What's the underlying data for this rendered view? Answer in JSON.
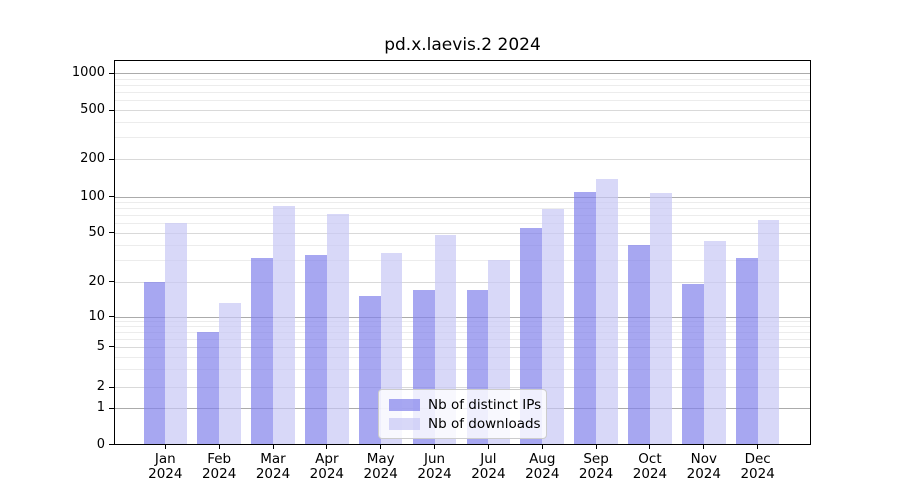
{
  "title": "pd.x.laevis.2 2024",
  "chart_data": {
    "type": "bar",
    "title": "pd.x.laevis.2 2024",
    "categories": [
      "Jan 2024",
      "Feb 2024",
      "Mar 2024",
      "Apr 2024",
      "May 2024",
      "Jun 2024",
      "Jul 2024",
      "Aug 2024",
      "Sep 2024",
      "Oct 2024",
      "Nov 2024",
      "Dec 2024"
    ],
    "series": [
      {
        "name": "Nb of distinct IPs",
        "color": "#8282eb",
        "values": [
          20,
          7,
          31,
          33,
          15,
          17,
          17,
          55,
          110,
          40,
          19,
          31
        ]
      },
      {
        "name": "Nb of downloads",
        "color": "#c8c8f5",
        "values": [
          60,
          13,
          84,
          72,
          34,
          48,
          30,
          79,
          140,
          107,
          43,
          64
        ]
      }
    ],
    "xlabel": "",
    "ylabel": "",
    "yscale": "symlog",
    "yticks": [
      0,
      1,
      2,
      5,
      10,
      20,
      50,
      100,
      200,
      500,
      1000
    ],
    "ylim": [
      0,
      1300
    ],
    "grid": true,
    "legend_position": "lower center",
    "bar_opacity": 0.7
  }
}
